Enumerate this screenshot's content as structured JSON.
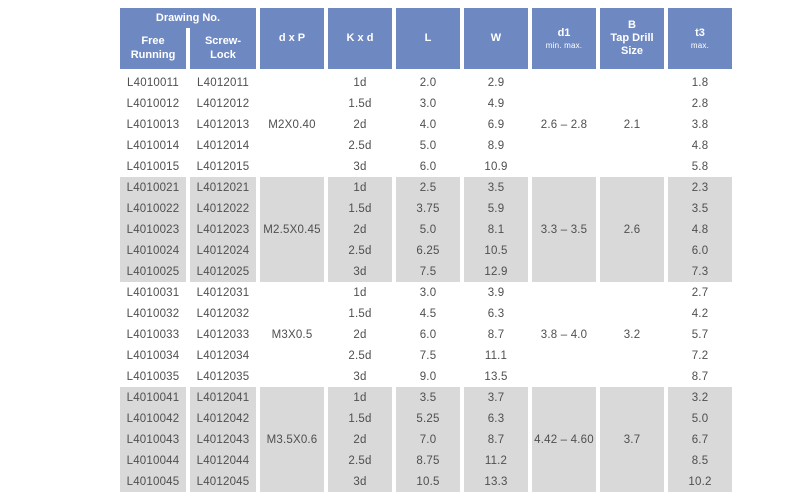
{
  "colors": {
    "header_bg": "#6e88c1",
    "header_text": "#ffffff",
    "shaded_bg": "#d9d9d9",
    "data_text": "#4f4f4f"
  },
  "header": {
    "drawing_no": "Drawing No.",
    "free_running": "Free\nRunning",
    "screw_lock": "Screw-\nLock",
    "d_x_p": "d x P",
    "k_x_d": "K x d",
    "length": "L",
    "width": "W",
    "d1": "d1",
    "d1_sub": "min. max.",
    "tap_drill": "B\nTap Drill\nSize",
    "t3": "t3",
    "t3_sub": "max."
  },
  "groups": [
    {
      "shaded": false,
      "dxp": "M2X0.40",
      "d1": "2.6 – 2.8",
      "b": "2.1",
      "rows": [
        {
          "free": "L4010011",
          "screw": "L4012011",
          "kxd": "1d",
          "l": "2.0",
          "w": "2.9",
          "t3": "1.8"
        },
        {
          "free": "L4010012",
          "screw": "L4012012",
          "kxd": "1.5d",
          "l": "3.0",
          "w": "4.9",
          "t3": "2.8"
        },
        {
          "free": "L4010013",
          "screw": "L4012013",
          "kxd": "2d",
          "l": "4.0",
          "w": "6.9",
          "t3": "3.8"
        },
        {
          "free": "L4010014",
          "screw": "L4012014",
          "kxd": "2.5d",
          "l": "5.0",
          "w": "8.9",
          "t3": "4.8"
        },
        {
          "free": "L4010015",
          "screw": "L4012015",
          "kxd": "3d",
          "l": "6.0",
          "w": "10.9",
          "t3": "5.8"
        }
      ]
    },
    {
      "shaded": true,
      "dxp": "M2.5X0.45",
      "d1": "3.3 – 3.5",
      "b": "2.6",
      "rows": [
        {
          "free": "L4010021",
          "screw": "L4012021",
          "kxd": "1d",
          "l": "2.5",
          "w": "3.5",
          "t3": "2.3"
        },
        {
          "free": "L4010022",
          "screw": "L4012022",
          "kxd": "1.5d",
          "l": "3.75",
          "w": "5.9",
          "t3": "3.5"
        },
        {
          "free": "L4010023",
          "screw": "L4012023",
          "kxd": "2d",
          "l": "5.0",
          "w": "8.1",
          "t3": "4.8"
        },
        {
          "free": "L4010024",
          "screw": "L4012024",
          "kxd": "2.5d",
          "l": "6.25",
          "w": "10.5",
          "t3": "6.0"
        },
        {
          "free": "L4010025",
          "screw": "L4012025",
          "kxd": "3d",
          "l": "7.5",
          "w": "12.9",
          "t3": "7.3"
        }
      ]
    },
    {
      "shaded": false,
      "dxp": "M3X0.5",
      "d1": "3.8 – 4.0",
      "b": "3.2",
      "rows": [
        {
          "free": "L4010031",
          "screw": "L4012031",
          "kxd": "1d",
          "l": "3.0",
          "w": "3.9",
          "t3": "2.7"
        },
        {
          "free": "L4010032",
          "screw": "L4012032",
          "kxd": "1.5d",
          "l": "4.5",
          "w": "6.3",
          "t3": "4.2"
        },
        {
          "free": "L4010033",
          "screw": "L4012033",
          "kxd": "2d",
          "l": "6.0",
          "w": "8.7",
          "t3": "5.7"
        },
        {
          "free": "L4010034",
          "screw": "L4012034",
          "kxd": "2.5d",
          "l": "7.5",
          "w": "11.1",
          "t3": "7.2"
        },
        {
          "free": "L4010035",
          "screw": "L4012035",
          "kxd": "3d",
          "l": "9.0",
          "w": "13.5",
          "t3": "8.7"
        }
      ]
    },
    {
      "shaded": true,
      "dxp": "M3.5X0.6",
      "d1": "4.42 – 4.60",
      "b": "3.7",
      "rows": [
        {
          "free": "L4010041",
          "screw": "L4012041",
          "kxd": "1d",
          "l": "3.5",
          "w": "3.7",
          "t3": "3.2"
        },
        {
          "free": "L4010042",
          "screw": "L4012042",
          "kxd": "1.5d",
          "l": "5.25",
          "w": "6.3",
          "t3": "5.0"
        },
        {
          "free": "L4010043",
          "screw": "L4012043",
          "kxd": "2d",
          "l": "7.0",
          "w": "8.7",
          "t3": "6.7"
        },
        {
          "free": "L4010044",
          "screw": "L4012044",
          "kxd": "2.5d",
          "l": "8.75",
          "w": "11.2",
          "t3": "8.5"
        },
        {
          "free": "L4010045",
          "screw": "L4012045",
          "kxd": "3d",
          "l": "10.5",
          "w": "13.3",
          "t3": "10.2"
        }
      ]
    }
  ]
}
